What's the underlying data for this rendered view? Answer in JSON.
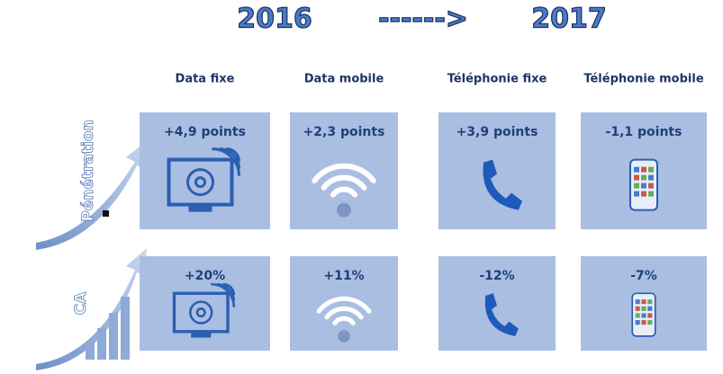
{
  "header": {
    "from": "2016",
    "arrow": "------>",
    "to": "2017"
  },
  "columns": [
    "Data fixe",
    "Data mobile",
    "Téléphonie fixe",
    "Téléphonie mobile"
  ],
  "rows": [
    {
      "label": "Pénétration",
      "values": [
        "+4,9 points",
        "+2,3 points",
        "+3,9 points",
        "-1,1 points"
      ]
    },
    {
      "label": "CA",
      "values": [
        "+20%",
        "+11%",
        "-12%",
        "-7%"
      ]
    }
  ]
}
